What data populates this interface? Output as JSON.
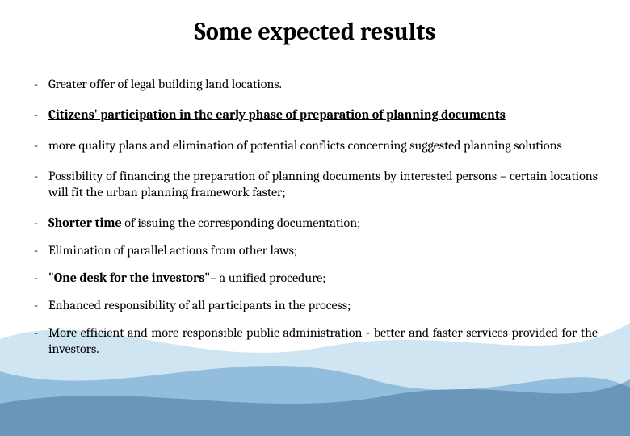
{
  "title": {
    "text": "Some expected results",
    "fontsize": 30,
    "color": "#000000"
  },
  "divider_color": "#3a6ea5",
  "body_fontsize": 16,
  "dash": "-",
  "items": [
    {
      "html": "Greater offer of legal building land locations."
    },
    {
      "html": "<span class='bold underline'>Citizens' participation in the early phase of preparation of planning documents</span>"
    },
    {
      "html": "more quality plans and elimination of potential conflicts concerning suggested planning solutions"
    },
    {
      "html": "Possibility of financing the preparation of planning documents by interested persons – certain locations will fit the urban planning framework faster;"
    },
    {
      "html": "<span class='bold underline'>Shorter time</span> of issuing the corresponding documentation;"
    },
    {
      "html": "Elimination of parallel actions from other laws;"
    },
    {
      "html": "<span class='bold underline'>\"One desk for the investors\"</span>– a unified procedure;"
    },
    {
      "html": "Enhanced responsibility of all participants in the process;"
    },
    {
      "html": "More efficient and more responsible public administration - better and faster services provided for the investors."
    }
  ],
  "wave_colors": {
    "light": "#a8cfe8",
    "mid": "#4a8cc2",
    "dark": "#1f4e79"
  },
  "background_color": "#ffffff"
}
